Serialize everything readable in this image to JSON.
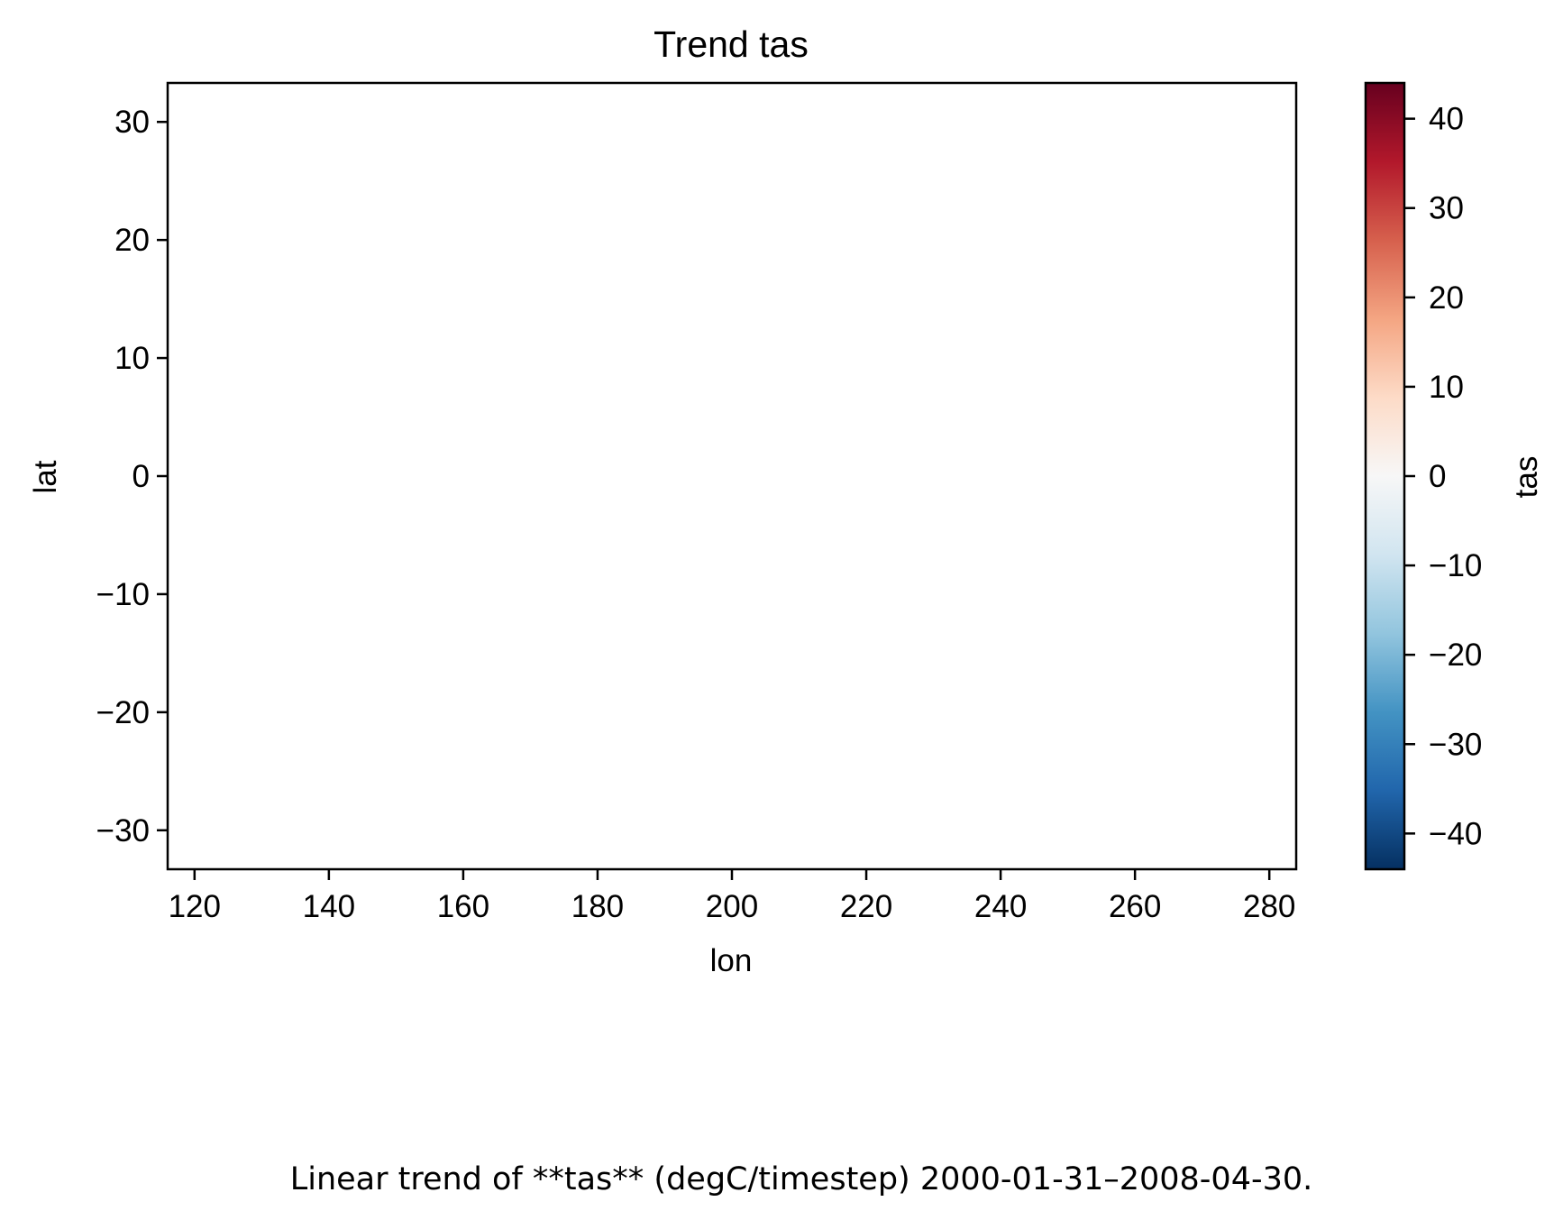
{
  "chart_data": [
    {
      "type": "heatmap",
      "title": "Trend tas",
      "xlabel": "lon",
      "ylabel": "lat",
      "xlim": [
        116,
        284
      ],
      "ylim": [
        -33.3,
        33.3
      ],
      "xticks": [
        120,
        140,
        160,
        180,
        200,
        220,
        240,
        260,
        280
      ],
      "xtick_labels": [
        "120",
        "140",
        "160",
        "180",
        "200",
        "220",
        "240",
        "260",
        "280"
      ],
      "yticks": [
        30,
        20,
        10,
        0,
        -10,
        -20,
        -30
      ],
      "ytick_labels": [
        "30",
        "20",
        "10",
        "0",
        "−10",
        "−20",
        "−30"
      ],
      "values": [],
      "grid": false,
      "colorbar": {
        "label": "tas",
        "colormap": "RdBu_r",
        "vmin": -44,
        "vmax": 44,
        "ticks": [
          40,
          30,
          20,
          10,
          0,
          -10,
          -20,
          -30,
          -40
        ],
        "tick_labels": [
          "40",
          "30",
          "20",
          "10",
          "0",
          "−10",
          "−20",
          "−30",
          "−40"
        ],
        "colors": [
          "#053061",
          "#2166ac",
          "#4393c3",
          "#92c5de",
          "#d1e5f0",
          "#f7f7f7",
          "#fddbc7",
          "#f4a582",
          "#d6604d",
          "#b2182b",
          "#67001f"
        ]
      }
    }
  ],
  "caption": "Linear trend of **tas** (degC/timestep) 2000-01-31–2008-04-30."
}
